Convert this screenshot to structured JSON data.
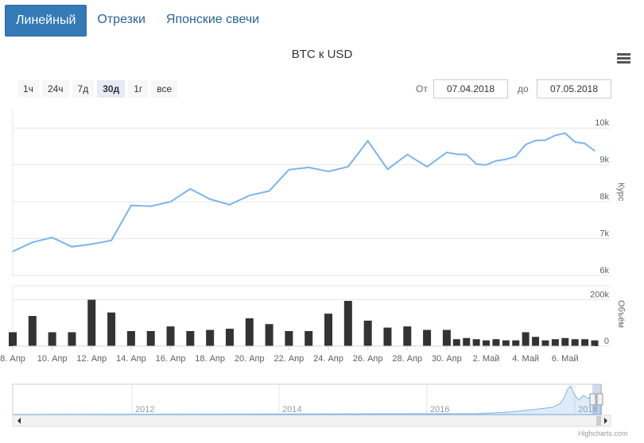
{
  "tabs": [
    {
      "label": "Линейный",
      "active": true
    },
    {
      "label": "Отрезки",
      "active": false
    },
    {
      "label": "Японские свечи",
      "active": false
    }
  ],
  "range_buttons": [
    {
      "label": "1ч",
      "selected": false
    },
    {
      "label": "24ч",
      "selected": false
    },
    {
      "label": "7д",
      "selected": false
    },
    {
      "label": "30д",
      "selected": true
    },
    {
      "label": "1г",
      "selected": false
    },
    {
      "label": "все",
      "selected": false
    }
  ],
  "date_range": {
    "from_label": "От",
    "from": "07.04.2018",
    "to_label": "до",
    "to": "07.05.2018"
  },
  "credit": "Highcharts.com",
  "colors": {
    "line": "#7cb5ec",
    "volume": "#333333",
    "tab_active": "#337ab7"
  },
  "chart_data": [
    {
      "type": "line",
      "title": "BTC к USD",
      "ylabel": "Курс",
      "ylim": [
        6000,
        10500
      ],
      "y_ticks": [
        6000,
        7000,
        8000,
        9000,
        10000
      ],
      "y_tick_labels": [
        "6k",
        "7k",
        "8k",
        "9k",
        "10k"
      ],
      "x_tick_labels": [
        "8. Апр",
        "10. Апр",
        "12. Апр",
        "14. Апр",
        "16. Апр",
        "18. Апр",
        "20. Апр",
        "22. Апр",
        "24. Апр",
        "26. Апр",
        "28. Апр",
        "30. Апр",
        "2. Май",
        "4. Май",
        "6. Май"
      ],
      "x": [
        0,
        1,
        2,
        3,
        4,
        5,
        6,
        7,
        8,
        9,
        10,
        11,
        12,
        13,
        14,
        15,
        16,
        17,
        18,
        19,
        20,
        21,
        22,
        22.5,
        23,
        23.5,
        24,
        24.5,
        25,
        25.5,
        26,
        26.5,
        27,
        27.5,
        28,
        28.5,
        29,
        29.5
      ],
      "values": [
        6650,
        6900,
        7030,
        6780,
        6850,
        6950,
        7900,
        7880,
        8000,
        8350,
        8070,
        7920,
        8170,
        8290,
        8870,
        8930,
        8820,
        8950,
        9650,
        8880,
        9280,
        8950,
        9340,
        9290,
        9280,
        9020,
        9000,
        9110,
        9150,
        9230,
        9550,
        9660,
        9670,
        9800,
        9860,
        9620,
        9580,
        9380
      ],
      "grid": true
    },
    {
      "type": "bar",
      "ylabel": "Объём",
      "ylim": [
        0,
        260000
      ],
      "y_ticks": [
        0,
        200000
      ],
      "y_tick_labels": [
        "0",
        "200k"
      ],
      "x": [
        0,
        1,
        2,
        3,
        4,
        5,
        6,
        7,
        8,
        9,
        10,
        11,
        12,
        13,
        14,
        15,
        16,
        17,
        18,
        19,
        20,
        21,
        22,
        22.5,
        23,
        23.5,
        24,
        24.5,
        25,
        25.5,
        26,
        26.5,
        27,
        27.5,
        28,
        28.5,
        29,
        29.5
      ],
      "values": [
        60000,
        130000,
        60000,
        60000,
        200000,
        145000,
        65000,
        65000,
        85000,
        65000,
        70000,
        75000,
        120000,
        95000,
        65000,
        65000,
        140000,
        195000,
        110000,
        80000,
        85000,
        70000,
        70000,
        30000,
        35000,
        30000,
        25000,
        30000,
        25000,
        25000,
        60000,
        40000,
        25000,
        30000,
        35000,
        30000,
        30000,
        25000
      ]
    },
    {
      "type": "area",
      "role": "navigator",
      "x_tick_labels": [
        "2012",
        "2014",
        "2016",
        "2018"
      ]
    }
  ]
}
